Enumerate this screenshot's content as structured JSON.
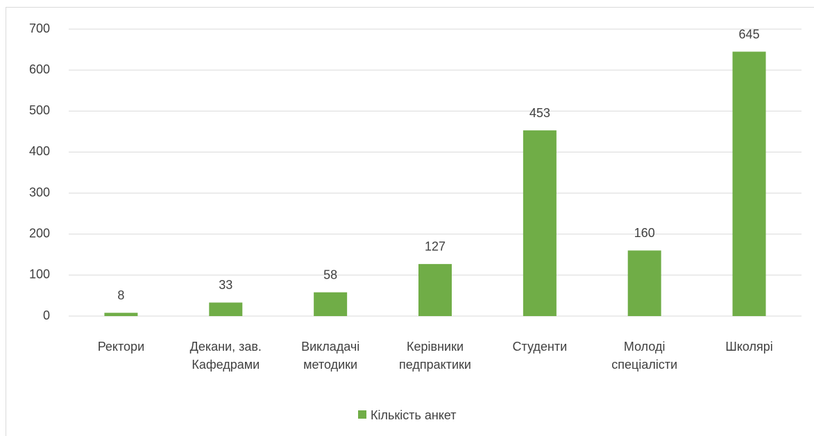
{
  "chart_data": {
    "type": "bar",
    "categories": [
      "Ректори",
      "Декани, зав. Кафедрами",
      "Викладачі методики",
      "Керівники педпрактики",
      "Студенти",
      "Молоді спеціалісти",
      "Школярі"
    ],
    "series": [
      {
        "name": "Кількість анкет",
        "color": "#70ad47",
        "values": [
          8,
          33,
          58,
          127,
          453,
          160,
          645
        ]
      }
    ],
    "ylim": [
      0,
      700
    ],
    "yticks": [
      0,
      100,
      200,
      300,
      400,
      500,
      600,
      700
    ],
    "grid": true,
    "legend": "bottom"
  }
}
